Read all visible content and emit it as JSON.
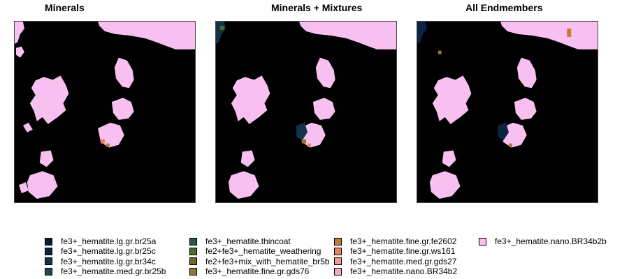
{
  "panels": [
    {
      "title": "Minerals"
    },
    {
      "title": "Minerals + Mixtures"
    },
    {
      "title": "All Endmembers"
    }
  ],
  "legend": {
    "columns": [
      [
        {
          "label": "fe3+_hematite.lg.gr.br25a",
          "color": "#0a1a3a"
        },
        {
          "label": "fe3+_hematite.lg.gr.br25c",
          "color": "#0e2244"
        },
        {
          "label": "fe3+_hematite.lg.gr.br34c",
          "color": "#113448"
        },
        {
          "label": "fe3+_hematite.med.gr.br25b",
          "color": "#1a4a50"
        }
      ],
      [
        {
          "label": "fe3+_hematite.thincoat",
          "color": "#2b5a40"
        },
        {
          "label": "fe2+fe3+_hematite_weathering",
          "color": "#4a6a30"
        },
        {
          "label": "fe2+fe3+mix_with_hematite_br5b",
          "color": "#6b6a28"
        },
        {
          "label": "fe3+_hematite.fine.gr.gds76",
          "color": "#957830"
        }
      ],
      [
        {
          "label": "fe3+_hematite.fine.gr.fe2602",
          "color": "#c07a38"
        },
        {
          "label": "fe3+_hematite.fine.gr.ws161",
          "color": "#e8845a"
        },
        {
          "label": "fe3+_hematite.med.gr.gds27",
          "color": "#f39a90"
        },
        {
          "label": "fe3+_hematite.nano.BR34b2",
          "color": "#f7a8c8"
        }
      ],
      [
        {
          "label": "fe3+_hematite.nano.BR34b2b",
          "color": "#f8c0f0"
        }
      ]
    ]
  }
}
